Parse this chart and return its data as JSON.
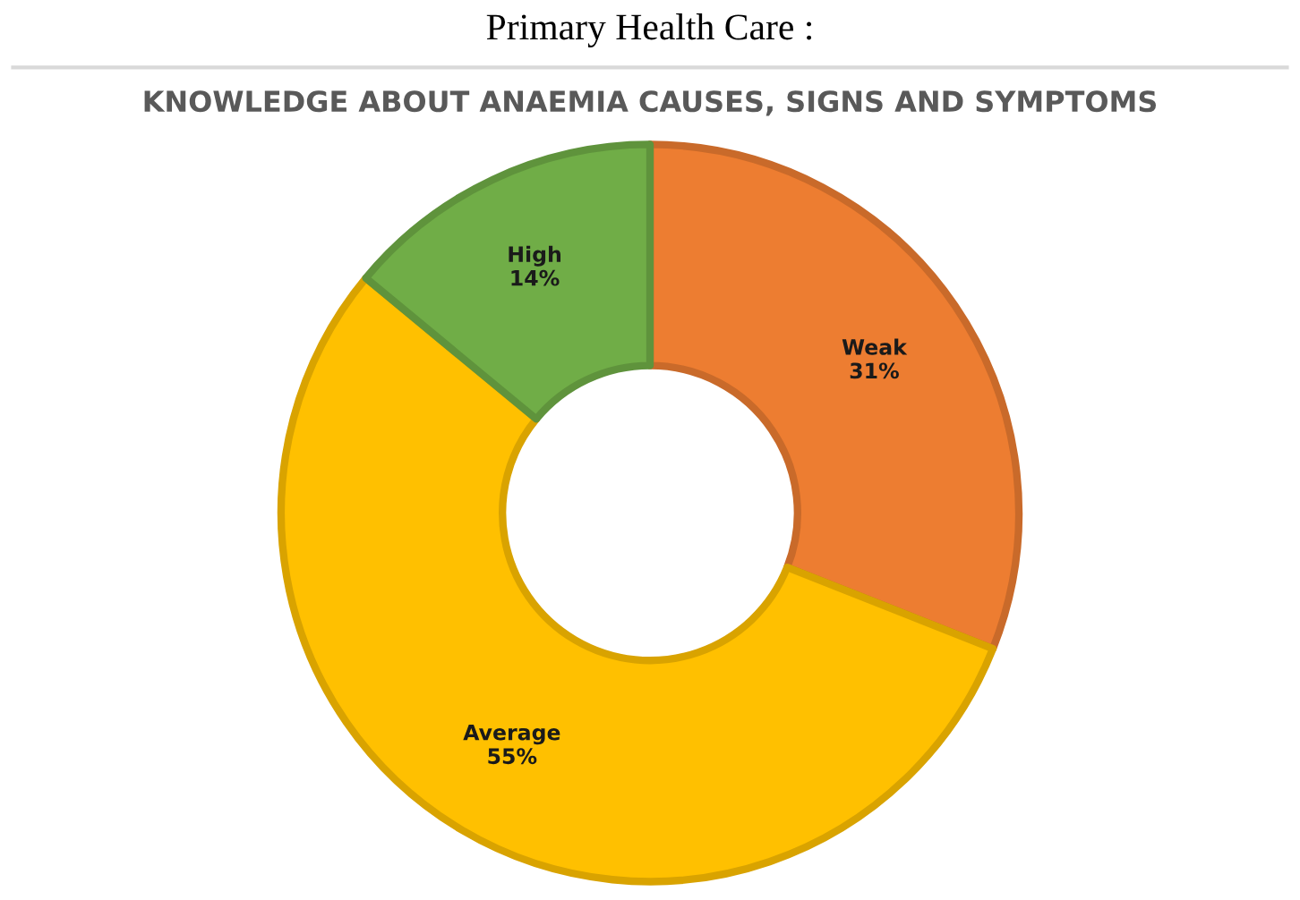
{
  "chart_data": {
    "type": "donut",
    "title": "KNOWLEDGE ABOUT ANAEMIA CAUSES, SIGNS AND SYMPTOMS",
    "annotations": [
      "Primary Health Care :"
    ],
    "categories": [
      "Weak",
      "Average",
      "High"
    ],
    "values": [
      31,
      55,
      14
    ],
    "value_labels": [
      "31%",
      "55%",
      "14%"
    ],
    "colors": [
      "#ed7d31",
      "#ffc000",
      "#70ad47"
    ],
    "legend": false
  }
}
